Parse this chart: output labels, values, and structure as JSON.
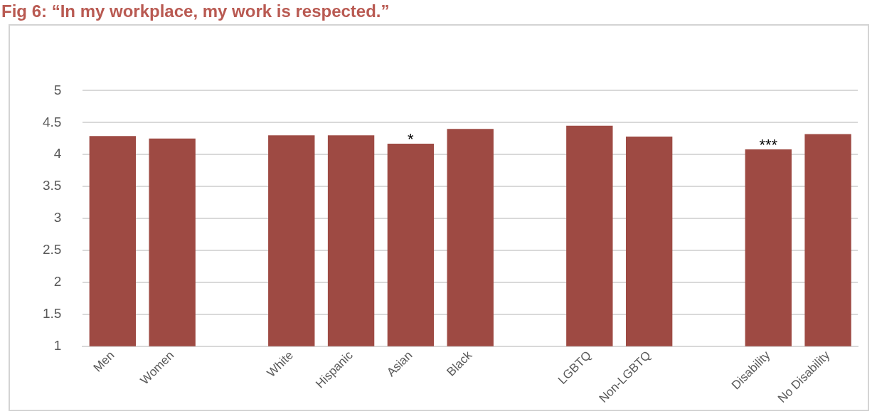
{
  "chart_data": {
    "type": "bar",
    "title": "Fig 6: “In my workplace, my work is respected.”",
    "categories": [
      "Men",
      "Women",
      null,
      "White",
      "Hispanic",
      "Asian",
      "Black",
      null,
      "LGBTQ",
      "Non-LGBTQ",
      null,
      "Disability",
      "No Disability"
    ],
    "values": [
      4.29,
      4.25,
      null,
      4.3,
      4.3,
      4.17,
      4.4,
      null,
      4.45,
      4.28,
      null,
      4.08,
      4.32
    ],
    "color": "#9e4a43",
    "ylim": [
      1,
      5
    ],
    "yticks": [
      1,
      1.5,
      2,
      2.5,
      3,
      3.5,
      4,
      4.5,
      5
    ],
    "grid": "y",
    "legend": false,
    "annotations": [
      {
        "text": "*",
        "x": "Asian",
        "y": 4.17
      },
      {
        "text": "***",
        "x": "Disability",
        "y": 4.08
      }
    ]
  }
}
